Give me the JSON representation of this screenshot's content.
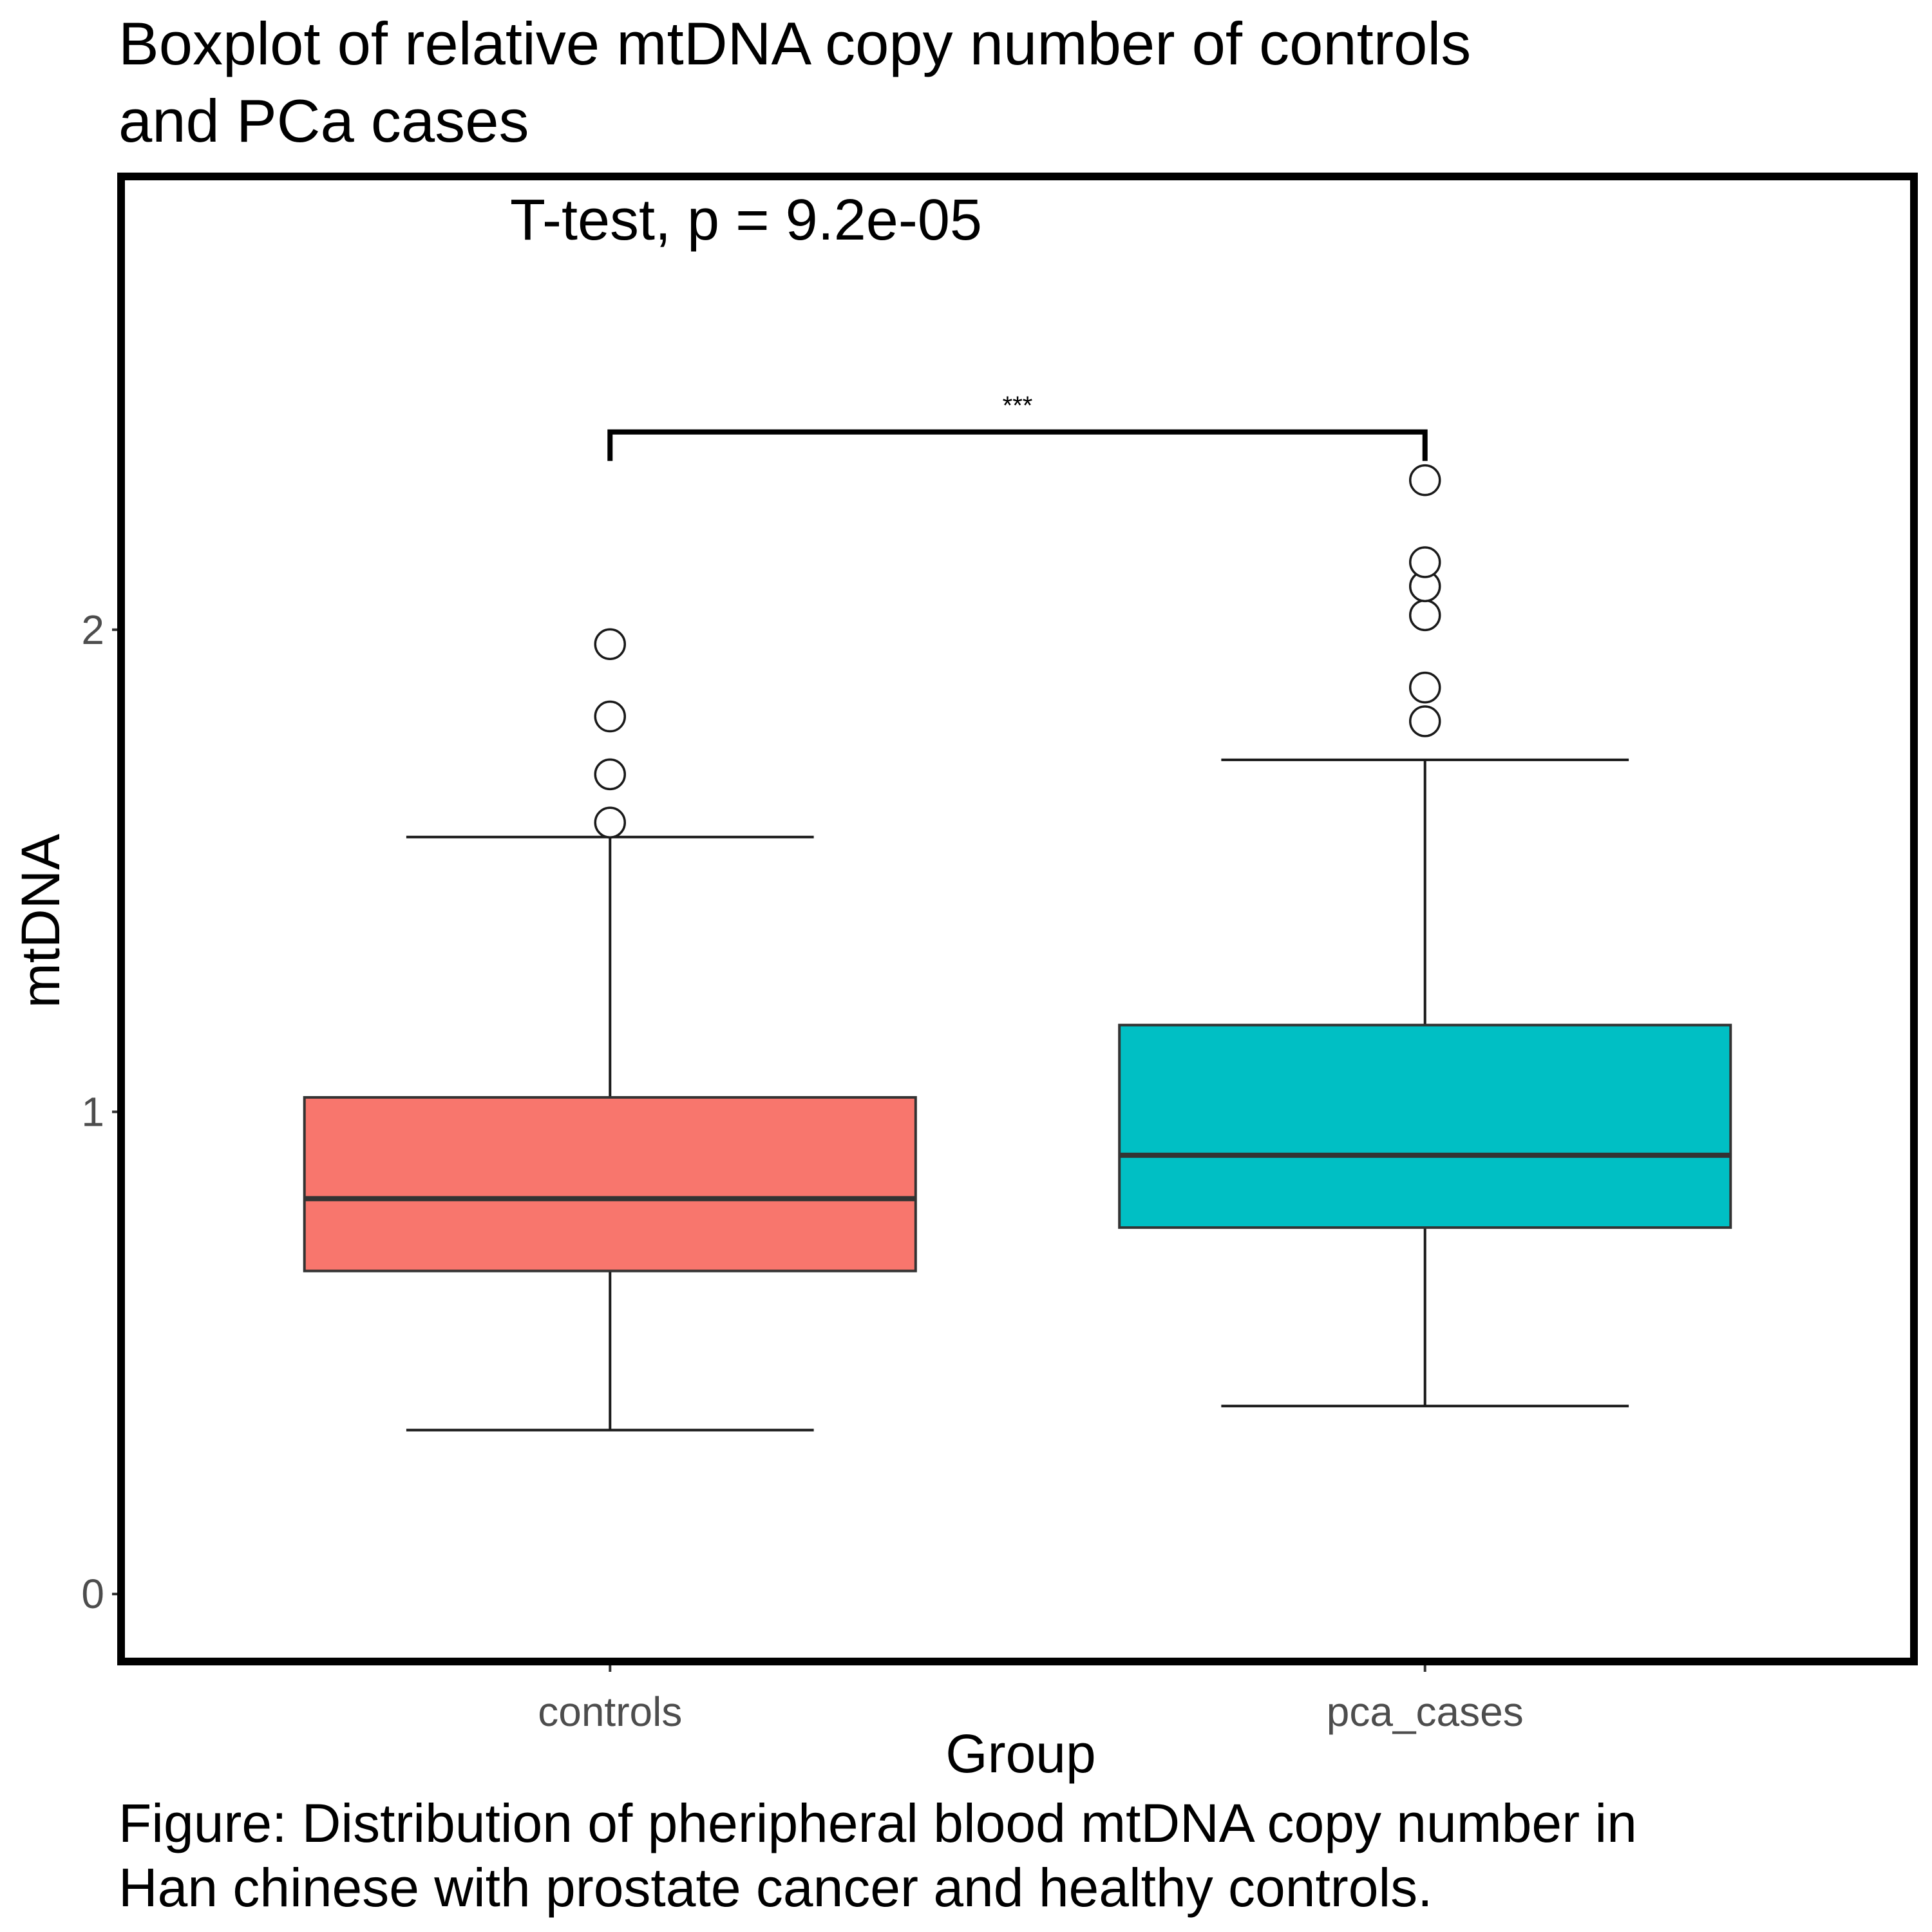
{
  "chart_data": {
    "type": "box",
    "title": "Boxplot of relative mtDNA copy number of controls and PCa cases",
    "title_lines": [
      "Boxplot of relative mtDNA copy number of controls",
      "and PCa cases"
    ],
    "xlabel": "Group",
    "ylabel": "mtDNA",
    "categories": [
      "controls",
      "pca_cases"
    ],
    "ylim": [
      -0.14,
      2.94
    ],
    "yticks": [
      0,
      1,
      2
    ],
    "grid": false,
    "legend": "none",
    "annotation": "T-test, p = 9.2e-05",
    "significance": {
      "label": "***",
      "from": "controls",
      "to": "pca_cases",
      "y": 2.41,
      "tip_bottom": 2.35
    },
    "boxes": [
      {
        "group": "controls",
        "color": "#F8766D",
        "whisker_low": 0.34,
        "q1": 0.67,
        "median": 0.82,
        "q3": 1.03,
        "whisker_high": 1.57,
        "outliers": [
          1.6,
          1.7,
          1.82,
          1.97
        ]
      },
      {
        "group": "pca_cases",
        "color": "#00BFC4",
        "whisker_low": 0.39,
        "q1": 0.76,
        "median": 0.91,
        "q3": 1.18,
        "whisker_high": 1.73,
        "outliers": [
          1.81,
          1.88,
          2.03,
          2.09,
          2.14,
          2.31
        ]
      }
    ]
  },
  "caption_lines": [
    "Figure: Distribution of pheripheral blood mtDNA copy number in",
    "Han chinese with prostate cancer and healthy controls."
  ]
}
